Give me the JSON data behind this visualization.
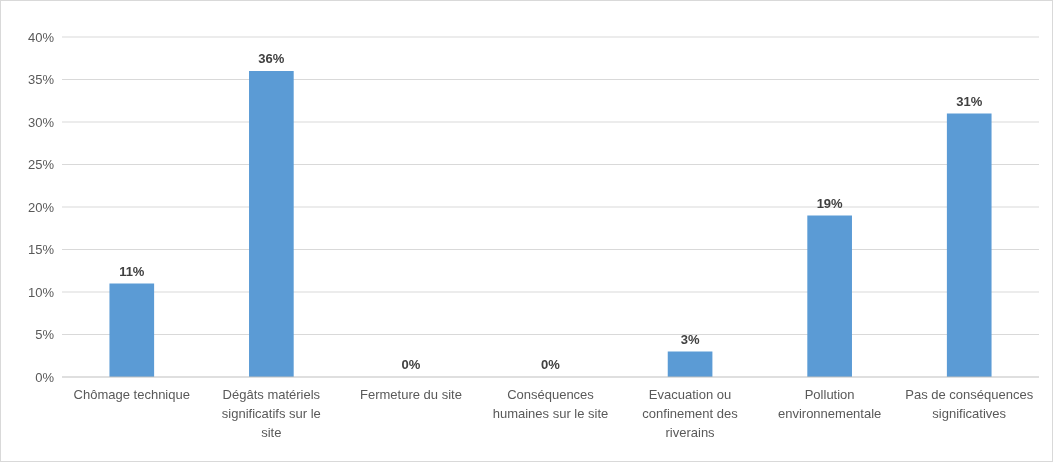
{
  "chart_data": {
    "type": "bar",
    "categories": [
      "Chômage technique",
      "Dégâts matériels significatifs sur le site",
      "Fermeture du site",
      "Conséquences humaines sur le site",
      "Evacuation ou confinement des riverains",
      "Pollution environnementale",
      "Pas de conséquences significatives"
    ],
    "values": [
      11,
      36,
      0,
      0,
      3,
      19,
      31
    ],
    "value_labels": [
      "11%",
      "36%",
      "0%",
      "0%",
      "3%",
      "19%",
      "31%"
    ],
    "color": "#5b9bd5",
    "ylim": [
      0,
      40
    ],
    "yticks": [
      {
        "value": 0,
        "label": "0%"
      },
      {
        "value": 5,
        "label": "5%"
      },
      {
        "value": 10,
        "label": "10%"
      },
      {
        "value": 15,
        "label": "15%"
      },
      {
        "value": 20,
        "label": "20%"
      },
      {
        "value": 25,
        "label": "25%"
      },
      {
        "value": 30,
        "label": "30%"
      },
      {
        "value": 35,
        "label": "35%"
      },
      {
        "value": 40,
        "label": "40%"
      }
    ],
    "grid": "y"
  }
}
